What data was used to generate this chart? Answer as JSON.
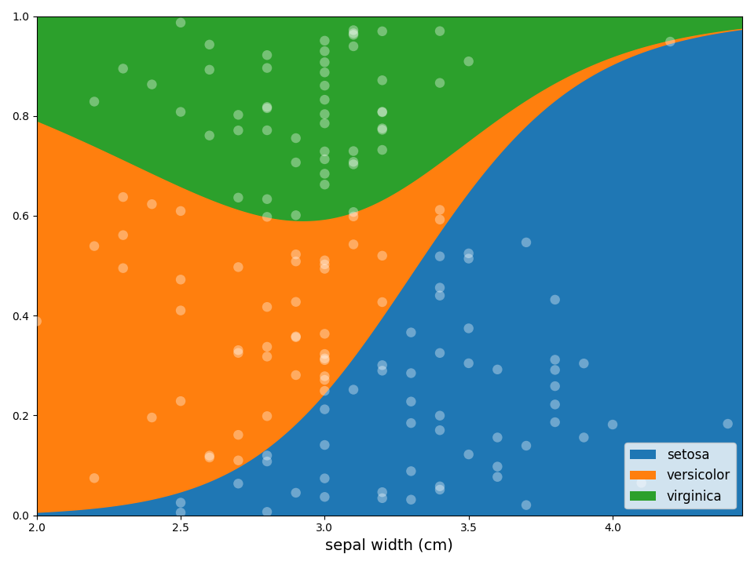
{
  "xlabel": "sepal width (cm)",
  "xlim": [
    2.0,
    4.45
  ],
  "ylim": [
    0.0,
    1.0
  ],
  "legend_labels": [
    "setosa",
    "versicolor",
    "virginica"
  ],
  "colors": {
    "setosa": "#1f77b4",
    "versicolor": "#ff7f0e",
    "virginica": "#2ca02c"
  },
  "point_alpha": 0.35,
  "point_size": 80,
  "point_color": "white",
  "random_seed": 42,
  "lr_C": 1.0,
  "figsize": [
    9.6,
    7.2
  ],
  "dpi": 100
}
